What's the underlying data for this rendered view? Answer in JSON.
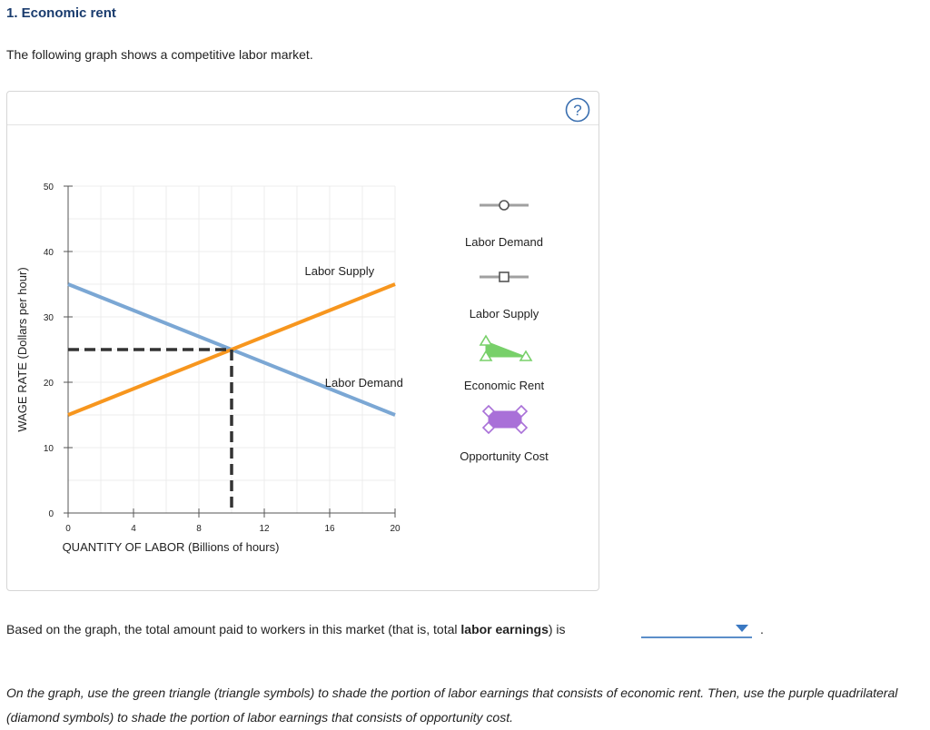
{
  "header": {
    "title": "1. Economic rent"
  },
  "intro": "The following graph shows a competitive labor market.",
  "help": {
    "icon": "question-circle-icon",
    "symbol": "?"
  },
  "chart_data": {
    "type": "line",
    "xlabel": "QUANTITY OF LABOR (Billions of hours)",
    "ylabel": "WAGE RATE (Dollars per hour)",
    "xlim": [
      0,
      20
    ],
    "ylim": [
      0,
      50
    ],
    "x_ticks": [
      0,
      4,
      8,
      12,
      16,
      20
    ],
    "y_ticks": [
      0,
      10,
      20,
      30,
      40,
      50
    ],
    "x_minor_step": 2,
    "y_minor_step": 5,
    "grid": true,
    "series": [
      {
        "name": "Labor Supply",
        "color": "#f7961e",
        "points": [
          [
            0,
            15
          ],
          [
            20,
            35
          ]
        ]
      },
      {
        "name": "Labor Demand",
        "color": "#7ba7d4",
        "points": [
          [
            0,
            35
          ],
          [
            20,
            15
          ]
        ]
      }
    ],
    "equilibrium": {
      "x": 10,
      "y": 25,
      "style": "black-dashed-guides"
    },
    "palette": [
      {
        "name": "Labor Demand",
        "symbol": "circle",
        "color": "#a0a0a0"
      },
      {
        "name": "Labor Supply",
        "symbol": "square",
        "color": "#a0a0a0"
      },
      {
        "name": "Economic Rent",
        "symbol": "triangle",
        "color": "#78d06a"
      },
      {
        "name": "Opportunity Cost",
        "symbol": "diamond",
        "color": "#a970d8"
      }
    ]
  },
  "question": {
    "before": "Based on the graph, the total amount paid to workers in this market (that is, total ",
    "bold": "labor earnings",
    "after": ") is",
    "dropdown_value": "",
    "period": "."
  },
  "instructions": "On the graph, use the green triangle (triangle symbols) to shade the portion of labor earnings that consists of economic rent. Then, use the purple quadrilateral (diamond symbols) to shade the portion of labor earnings that consists of opportunity cost."
}
